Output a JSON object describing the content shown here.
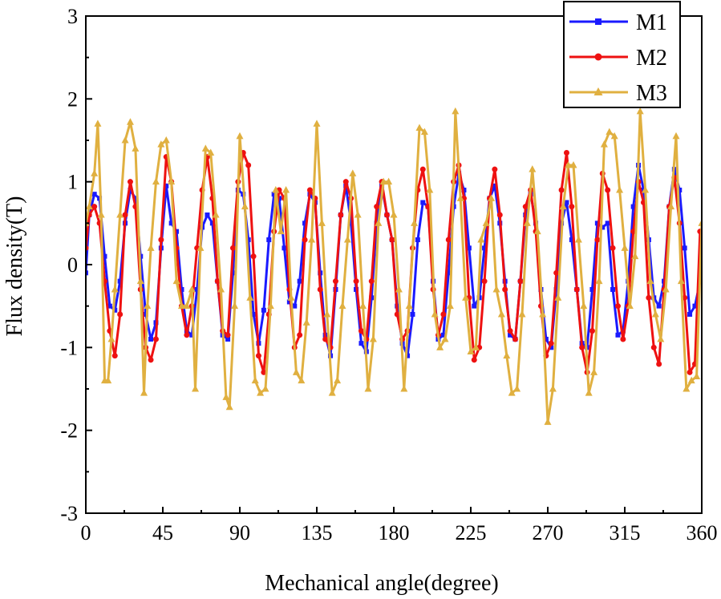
{
  "chart_data": {
    "type": "line",
    "title": "",
    "xlabel": "Mechanical angle(degree)",
    "ylabel": "Flux density(T)",
    "xlim": [
      0,
      360
    ],
    "ylim": [
      -3,
      3
    ],
    "xticks": [
      0,
      45,
      90,
      135,
      180,
      225,
      270,
      315,
      360
    ],
    "yticks": [
      -3,
      -2,
      -1,
      0,
      1,
      2,
      3
    ],
    "legend_position": "top-right",
    "series": [
      {
        "name": "M1",
        "color": "#1a1aff",
        "marker": "square",
        "x": [
          0,
          2,
          5,
          8,
          11,
          14,
          17,
          20,
          23,
          26,
          29,
          32,
          35,
          38,
          41,
          44,
          47,
          50,
          53,
          56,
          59,
          62,
          65,
          68,
          71,
          74,
          77,
          80,
          83,
          86,
          89,
          92,
          95,
          98,
          101,
          104,
          107,
          110,
          113,
          116,
          119,
          122,
          125,
          128,
          131,
          134,
          137,
          140,
          143,
          146,
          149,
          152,
          155,
          158,
          161,
          164,
          167,
          170,
          173,
          176,
          179,
          182,
          185,
          188,
          191,
          194,
          197,
          200,
          203,
          206,
          209,
          212,
          215,
          218,
          221,
          224,
          227,
          230,
          233,
          236,
          239,
          242,
          245,
          248,
          251,
          254,
          257,
          260,
          263,
          266,
          269,
          272,
          275,
          278,
          281,
          284,
          287,
          290,
          293,
          296,
          299,
          302,
          305,
          308,
          311,
          314,
          317,
          320,
          323,
          326,
          329,
          332,
          335,
          338,
          341,
          344,
          347,
          350,
          353,
          356,
          359
        ],
        "values": [
          -0.1,
          0.6,
          0.85,
          0.8,
          0.1,
          -0.5,
          -0.55,
          -0.2,
          0.5,
          0.9,
          0.8,
          0.1,
          -0.6,
          -0.9,
          -0.7,
          0.2,
          0.95,
          0.5,
          0.4,
          -0.3,
          -0.8,
          -0.85,
          -0.3,
          0.45,
          0.6,
          0.5,
          -0.2,
          -0.85,
          -0.9,
          -0.1,
          0.9,
          0.85,
          0.3,
          -0.6,
          -0.95,
          -0.55,
          0.3,
          0.85,
          0.8,
          0.2,
          -0.45,
          -0.5,
          -0.2,
          0.5,
          0.85,
          0.75,
          -0.1,
          -0.85,
          -1.1,
          -0.3,
          0.6,
          0.95,
          0.5,
          -0.3,
          -0.95,
          -1.05,
          -0.4,
          0.5,
          0.95,
          0.6,
          0.3,
          -0.5,
          -0.95,
          -1.1,
          -0.6,
          0.3,
          0.75,
          0.7,
          -0.2,
          -0.9,
          -0.85,
          -0.1,
          0.7,
          1.1,
          0.9,
          0.2,
          -0.5,
          -0.4,
          0.2,
          0.8,
          0.95,
          0.5,
          -0.2,
          -0.85,
          -0.9,
          -0.2,
          0.6,
          0.85,
          0.5,
          -0.3,
          -0.9,
          -1.0,
          -0.3,
          0.5,
          0.75,
          0.3,
          -0.3,
          -0.95,
          -1.0,
          -0.3,
          0.5,
          0.45,
          0.5,
          -0.3,
          -0.85,
          -0.8,
          -0.2,
          0.7,
          1.2,
          0.9,
          0.3,
          -0.4,
          -0.5,
          -0.2,
          0.7,
          1.15,
          0.9,
          0.2,
          -0.6,
          -0.5,
          -0.2
        ]
      },
      {
        "name": "M2",
        "color": "#ee1111",
        "marker": "circle",
        "x": [
          0,
          2,
          5,
          8,
          11,
          14,
          17,
          20,
          23,
          26,
          29,
          32,
          35,
          38,
          41,
          44,
          47,
          50,
          53,
          56,
          59,
          62,
          65,
          68,
          71,
          74,
          77,
          80,
          83,
          86,
          89,
          92,
          95,
          98,
          101,
          104,
          107,
          110,
          113,
          116,
          119,
          122,
          125,
          128,
          131,
          134,
          137,
          140,
          143,
          146,
          149,
          152,
          155,
          158,
          161,
          164,
          167,
          170,
          173,
          176,
          179,
          182,
          185,
          188,
          191,
          194,
          197,
          200,
          203,
          206,
          209,
          212,
          215,
          218,
          221,
          224,
          227,
          230,
          233,
          236,
          239,
          242,
          245,
          248,
          251,
          254,
          257,
          260,
          263,
          266,
          269,
          272,
          275,
          278,
          281,
          284,
          287,
          290,
          293,
          296,
          299,
          302,
          305,
          308,
          311,
          314,
          317,
          320,
          323,
          326,
          329,
          332,
          335,
          338,
          341,
          344,
          347,
          350,
          353,
          356,
          359
        ],
        "values": [
          0.2,
          0.6,
          0.7,
          0.5,
          -0.2,
          -0.8,
          -1.1,
          -0.6,
          0.6,
          1.0,
          0.7,
          -0.3,
          -1.0,
          -1.15,
          -0.9,
          0.3,
          1.3,
          1.0,
          0.2,
          -0.5,
          -0.85,
          -0.5,
          0.2,
          0.9,
          1.3,
          0.8,
          -0.2,
          -0.8,
          -0.85,
          0.2,
          1.0,
          1.35,
          1.2,
          0.1,
          -1.1,
          -1.3,
          -0.6,
          0.4,
          0.9,
          0.8,
          -0.3,
          -1.0,
          -0.85,
          0.3,
          0.9,
          0.8,
          -0.3,
          -0.9,
          -1.0,
          -0.2,
          0.6,
          1.0,
          0.8,
          -0.2,
          -0.8,
          -0.9,
          -0.2,
          0.7,
          1.0,
          0.6,
          0.3,
          -0.6,
          -0.9,
          -0.8,
          0.2,
          0.9,
          1.15,
          0.7,
          -0.3,
          -0.85,
          -0.6,
          0.3,
          1.0,
          1.2,
          0.8,
          -0.4,
          -1.15,
          -1.0,
          -0.2,
          0.8,
          1.15,
          0.6,
          -0.3,
          -0.8,
          -0.9,
          -0.2,
          0.7,
          0.9,
          0.4,
          -0.5,
          -1.1,
          -0.95,
          -0.1,
          0.9,
          1.35,
          0.7,
          -0.3,
          -1.0,
          -1.3,
          -0.8,
          0.3,
          1.1,
          0.9,
          0.2,
          -0.5,
          -0.9,
          -0.5,
          0.4,
          1.0,
          0.75,
          -0.4,
          -1.0,
          -1.2,
          -0.3,
          0.7,
          1.05,
          0.5,
          -0.4,
          -1.3,
          -1.2,
          0.4
        ]
      },
      {
        "name": "M3",
        "color": "#e0b040",
        "marker": "triangle",
        "x": [
          0,
          2,
          5,
          7,
          9,
          11,
          13,
          15,
          17,
          20,
          23,
          26,
          29,
          32,
          34,
          36,
          38,
          41,
          44,
          47,
          50,
          53,
          56,
          59,
          62,
          64,
          67,
          70,
          73,
          76,
          79,
          82,
          84,
          87,
          90,
          93,
          96,
          99,
          102,
          105,
          108,
          111,
          114,
          117,
          120,
          123,
          126,
          129,
          132,
          135,
          138,
          141,
          144,
          147,
          150,
          153,
          156,
          159,
          162,
          165,
          168,
          171,
          174,
          177,
          180,
          183,
          186,
          189,
          192,
          195,
          198,
          201,
          204,
          207,
          210,
          213,
          216,
          219,
          222,
          225,
          228,
          231,
          234,
          237,
          240,
          243,
          246,
          249,
          252,
          255,
          258,
          261,
          264,
          267,
          270,
          273,
          276,
          279,
          282,
          285,
          288,
          291,
          294,
          297,
          300,
          303,
          306,
          309,
          312,
          315,
          318,
          321,
          324,
          327,
          330,
          333,
          336,
          339,
          342,
          345,
          348,
          351,
          354,
          357,
          360
        ],
        "values": [
          0.5,
          0.7,
          1.1,
          1.7,
          0.6,
          -1.4,
          -1.4,
          -0.9,
          -0.3,
          0.6,
          1.5,
          1.72,
          1.4,
          -0.2,
          -1.55,
          -0.5,
          0.2,
          1.0,
          1.45,
          1.5,
          1.0,
          -0.2,
          -0.5,
          -0.5,
          -0.3,
          -1.5,
          0.2,
          1.4,
          1.35,
          0.6,
          -0.3,
          -1.6,
          -1.72,
          -0.5,
          1.55,
          0.7,
          -0.4,
          -1.4,
          -1.55,
          -1.5,
          -0.5,
          0.9,
          0.4,
          0.9,
          -0.4,
          -1.3,
          -1.4,
          -0.7,
          0.3,
          1.7,
          0.5,
          -0.6,
          -1.55,
          -1.4,
          -0.5,
          0.3,
          1.1,
          0.6,
          -0.5,
          -1.5,
          -0.9,
          0.5,
          1.0,
          1.0,
          0.6,
          -0.3,
          -1.5,
          -0.5,
          0.5,
          1.65,
          1.6,
          0.9,
          -0.6,
          -1.0,
          -0.9,
          -0.5,
          1.85,
          0.8,
          -0.4,
          -1.05,
          -1.0,
          0.3,
          0.5,
          0.8,
          -0.3,
          -0.6,
          -1.1,
          -1.55,
          -1.5,
          -0.6,
          0.5,
          1.15,
          0.4,
          -0.6,
          -1.9,
          -1.5,
          -0.4,
          0.7,
          1.2,
          1.2,
          0.3,
          -0.5,
          -1.55,
          -1.3,
          -0.2,
          1.45,
          1.6,
          1.55,
          0.9,
          0.2,
          -0.5,
          0.1,
          1.85,
          0.9,
          -0.2,
          -0.6,
          -0.9,
          -0.3,
          0.7,
          1.55,
          -0.2,
          -1.5,
          -1.4,
          -1.35,
          0.5
        ]
      }
    ]
  }
}
